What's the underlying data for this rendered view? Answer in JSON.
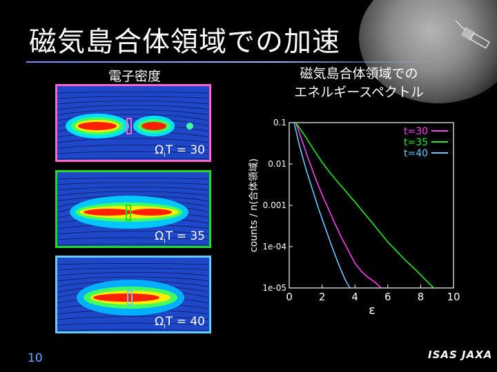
{
  "slide": {
    "title": "磁気島合体領域での加速",
    "left_caption": "電子密度",
    "right_caption_line1": "磁気島合体領域での",
    "right_caption_line2": "エネルギースペクトル",
    "page_number": "10",
    "logo_text": "ISAS JAXA"
  },
  "panels": [
    {
      "label_prefix": "Ω",
      "label_sub": "i",
      "label_suffix": "T = 30",
      "border_color": "#ff66cc"
    },
    {
      "label_prefix": "Ω",
      "label_sub": "i",
      "label_suffix": "T = 35",
      "border_color": "#22dd22"
    },
    {
      "label_prefix": "Ω",
      "label_sub": "i",
      "label_suffix": "T = 40",
      "border_color": "#66ccff"
    }
  ],
  "chart_data": {
    "type": "line",
    "xlabel": "ε",
    "ylabel": "counts / n(合体領域)",
    "xlim": [
      0,
      10
    ],
    "ylim": [
      1e-05,
      0.1
    ],
    "yscale": "log",
    "x_ticks": [
      "0",
      "2",
      "4",
      "6",
      "8",
      "10"
    ],
    "y_ticks": [
      "0.1",
      "0.01",
      "0.001",
      "1e-04",
      "1e-05"
    ],
    "legend_position": "top-right",
    "series": [
      {
        "name": "t=30",
        "color": "#ff44ee",
        "x": [
          0.4,
          0.8,
          1.2,
          1.6,
          2.0,
          2.4,
          2.8,
          3.2,
          3.6,
          4.0,
          4.4,
          4.8,
          5.2,
          5.6
        ],
        "y": [
          0.1,
          0.035,
          0.012,
          0.0045,
          0.0018,
          0.0008,
          0.00035,
          0.00016,
          8e-05,
          4e-05,
          2.5e-05,
          1.8e-05,
          1.4e-05,
          1e-05
        ]
      },
      {
        "name": "t=35",
        "color": "#22ee22",
        "x": [
          0.4,
          1.0,
          1.5,
          2.0,
          2.5,
          3.0,
          4.0,
          5.0,
          6.0,
          7.0,
          7.8,
          8.5,
          8.8
        ],
        "y": [
          0.1,
          0.045,
          0.022,
          0.011,
          0.006,
          0.0035,
          0.0012,
          0.0004,
          0.00013,
          5e-05,
          2.5e-05,
          1.3e-05,
          1e-05
        ]
      },
      {
        "name": "t=40",
        "color": "#66ccff",
        "x": [
          0.3,
          0.6,
          1.0,
          1.4,
          1.8,
          2.2,
          2.6,
          3.0,
          3.4,
          3.7
        ],
        "y": [
          0.1,
          0.03,
          0.008,
          0.0025,
          0.0008,
          0.00028,
          0.0001,
          3.8e-05,
          1.6e-05,
          1e-05
        ]
      }
    ]
  }
}
